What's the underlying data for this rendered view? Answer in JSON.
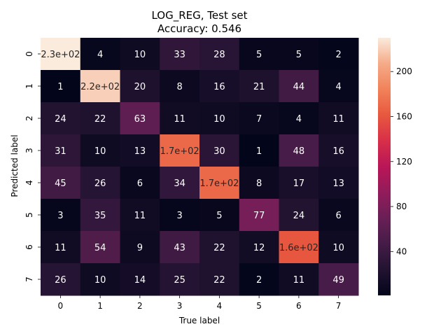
{
  "chart_data": {
    "type": "heatmap",
    "title": "LOG_REG, Test set",
    "subtitle": "Accuracy: 0.546",
    "xlabel": "True label",
    "ylabel": "Predicted label",
    "x_ticks": [
      "0",
      "1",
      "2",
      "3",
      "4",
      "5",
      "6",
      "7"
    ],
    "y_ticks": [
      "0",
      "1",
      "2",
      "3",
      "4",
      "5",
      "6",
      "7"
    ],
    "values": [
      [
        230,
        4,
        10,
        33,
        28,
        5,
        5,
        2
      ],
      [
        1,
        220,
        20,
        8,
        16,
        21,
        44,
        4
      ],
      [
        24,
        22,
        63,
        11,
        10,
        7,
        4,
        11
      ],
      [
        31,
        10,
        13,
        170,
        30,
        1,
        48,
        16
      ],
      [
        45,
        26,
        6,
        34,
        170,
        8,
        17,
        13
      ],
      [
        3,
        35,
        11,
        3,
        5,
        77,
        24,
        6
      ],
      [
        11,
        54,
        9,
        43,
        22,
        12,
        160,
        10
      ],
      [
        26,
        10,
        14,
        25,
        22,
        2,
        11,
        49
      ]
    ],
    "labels": [
      [
        "2.3e+02",
        "4",
        "10",
        "33",
        "28",
        "5",
        "5",
        "2"
      ],
      [
        "1",
        "2.2e+02",
        "20",
        "8",
        "16",
        "21",
        "44",
        "4"
      ],
      [
        "24",
        "22",
        "63",
        "11",
        "10",
        "7",
        "4",
        "11"
      ],
      [
        "31",
        "10",
        "13",
        "1.7e+02",
        "30",
        "1",
        "48",
        "16"
      ],
      [
        "45",
        "26",
        "6",
        "34",
        "1.7e+02",
        "8",
        "17",
        "13"
      ],
      [
        "3",
        "35",
        "11",
        "3",
        "5",
        "77",
        "24",
        "6"
      ],
      [
        "11",
        "54",
        "9",
        "43",
        "22",
        "12",
        "1.6e+02",
        "10"
      ],
      [
        "26",
        "10",
        "14",
        "25",
        "22",
        "2",
        "11",
        "49"
      ]
    ],
    "colorbar": {
      "min": 1,
      "max": 230,
      "ticks": [
        "40",
        "80",
        "120",
        "160",
        "200"
      ],
      "tick_values": [
        40,
        80,
        120,
        160,
        200
      ],
      "colormap": "rocket"
    },
    "grid": false
  }
}
